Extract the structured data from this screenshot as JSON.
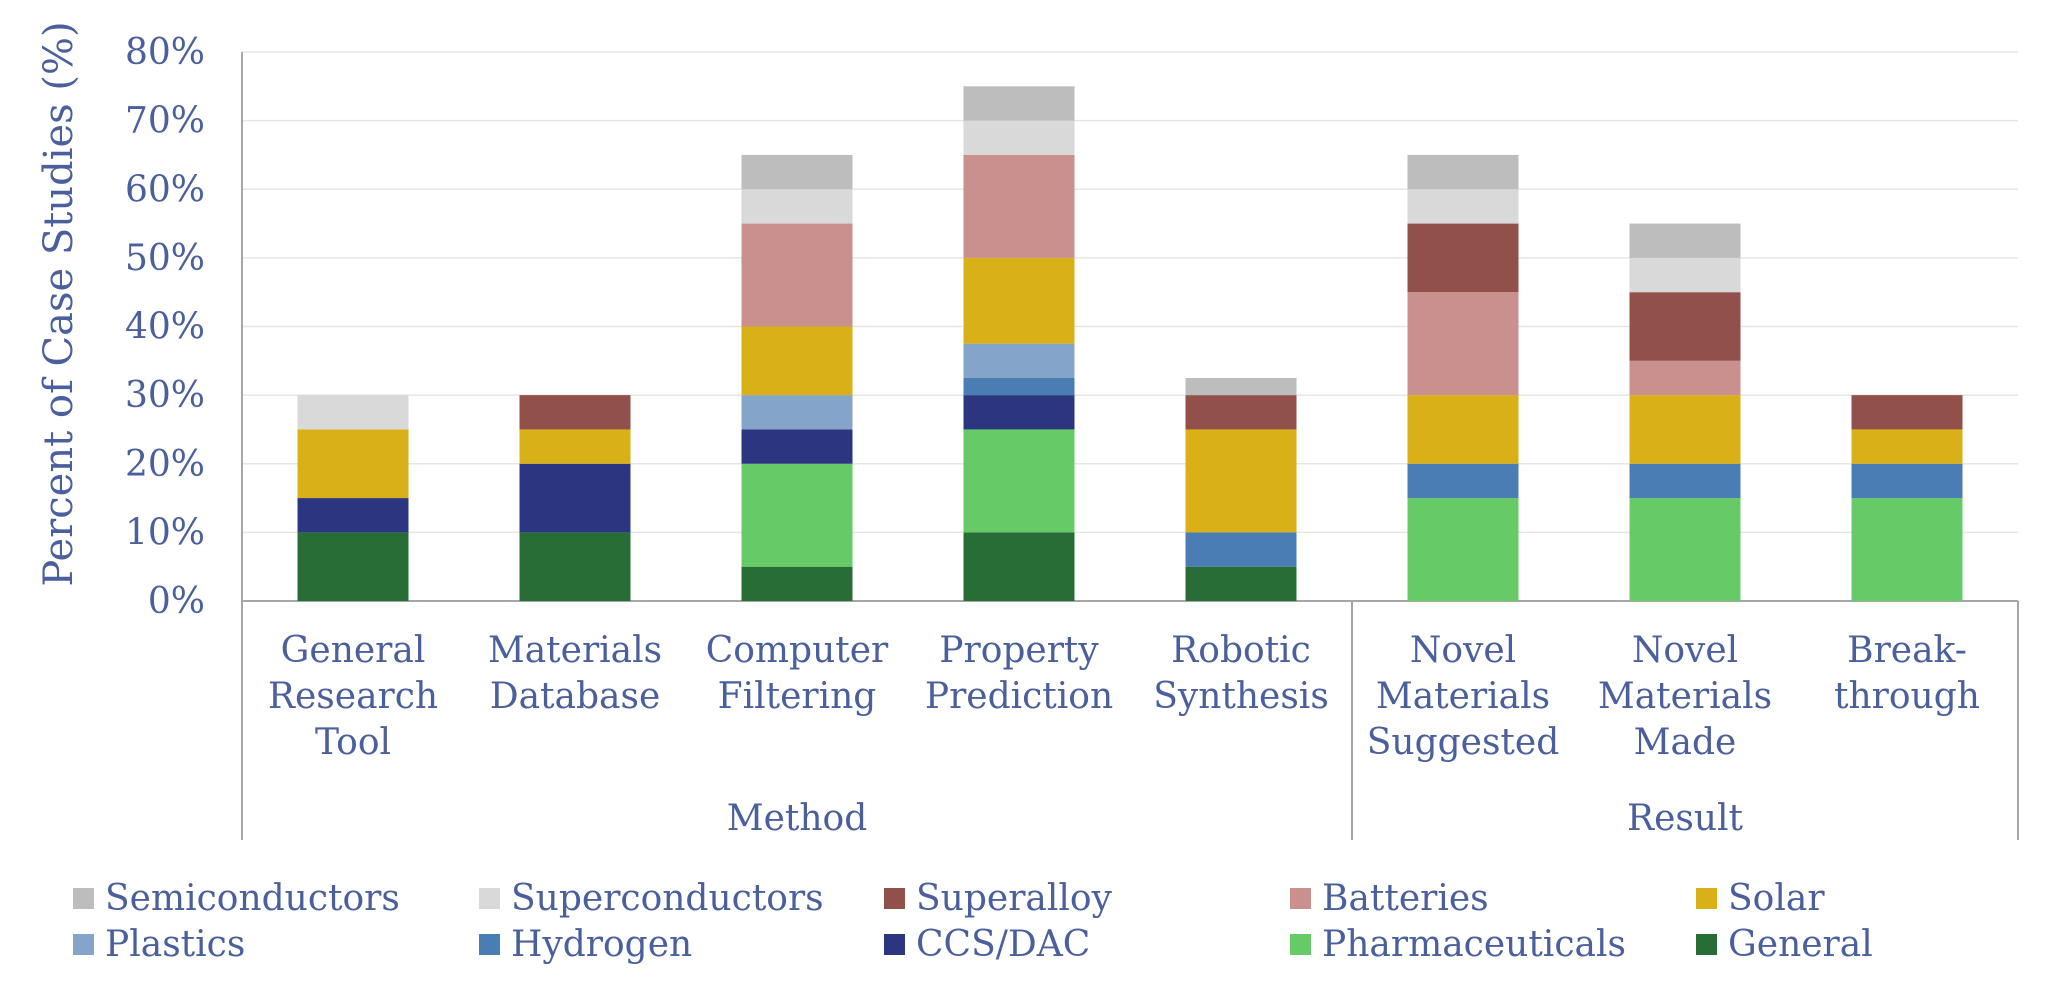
{
  "chart_data": {
    "type": "bar",
    "stacked": true,
    "ylabel": "Percent of Case Studies (%)",
    "ylim": [
      0,
      80
    ],
    "y_ticks": [
      "0%",
      "10%",
      "20%",
      "30%",
      "40%",
      "50%",
      "60%",
      "70%",
      "80%"
    ],
    "categories": [
      [
        "General",
        "Research",
        "Tool"
      ],
      [
        "Materials",
        "Database"
      ],
      [
        "Computer",
        "Filtering"
      ],
      [
        "Property",
        "Prediction"
      ],
      [
        "Robotic",
        "Synthesis"
      ],
      [
        "Novel",
        "Materials",
        "Suggested"
      ],
      [
        "Novel",
        "Materials",
        "Made"
      ],
      [
        "Break-",
        "through"
      ]
    ],
    "groups": [
      {
        "label": "Method",
        "start": 0,
        "end": 4
      },
      {
        "label": "Result",
        "start": 5,
        "end": 7
      }
    ],
    "legend_position": "bottom",
    "series": [
      {
        "name": "General",
        "color": "#276d35",
        "values": [
          10,
          10,
          5,
          10,
          5,
          0,
          0,
          0
        ]
      },
      {
        "name": "Pharmaceuticals",
        "color": "#66cb66",
        "values": [
          0,
          0,
          15,
          15,
          0,
          15,
          15,
          15
        ]
      },
      {
        "name": "CCS/DAC",
        "color": "#2b3580",
        "values": [
          5,
          10,
          5,
          5,
          0,
          0,
          0,
          0
        ]
      },
      {
        "name": "Hydrogen",
        "color": "#4a7db4",
        "values": [
          0,
          0,
          0,
          2.5,
          5,
          5,
          5,
          5
        ]
      },
      {
        "name": "Plastics",
        "color": "#84a4c9",
        "values": [
          0,
          0,
          5,
          5,
          0,
          0,
          0,
          0
        ]
      },
      {
        "name": "Solar",
        "color": "#d9b018",
        "values": [
          10,
          5,
          10,
          12.5,
          15,
          10,
          10,
          5
        ]
      },
      {
        "name": "Batteries",
        "color": "#ca908e",
        "values": [
          0,
          0,
          15,
          15,
          0,
          15,
          5,
          0
        ]
      },
      {
        "name": "Superalloy",
        "color": "#91504a",
        "values": [
          0,
          5,
          0,
          0,
          5,
          10,
          10,
          5
        ]
      },
      {
        "name": "Superconductors",
        "color": "#d9d9d9",
        "values": [
          5,
          0,
          5,
          5,
          0,
          5,
          5,
          0
        ]
      },
      {
        "name": "Semiconductors",
        "color": "#bdbdbd",
        "values": [
          0,
          0,
          5,
          5,
          2.5,
          5,
          5,
          0
        ]
      }
    ],
    "legend_order": [
      "Semiconductors",
      "Superconductors",
      "Superalloy",
      "Batteries",
      "Solar",
      "Plastics",
      "Hydrogen",
      "CCS/DAC",
      "Pharmaceuticals",
      "General"
    ]
  }
}
